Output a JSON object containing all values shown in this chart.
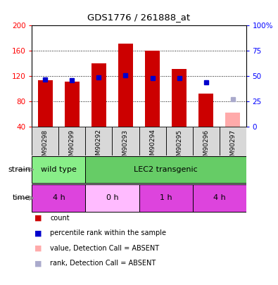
{
  "title": "GDS1776 / 261888_at",
  "samples": [
    "GSM90298",
    "GSM90299",
    "GSM90292",
    "GSM90293",
    "GSM90294",
    "GSM90295",
    "GSM90296",
    "GSM90297"
  ],
  "count_values": [
    114,
    112,
    140,
    172,
    160,
    132,
    93,
    null
  ],
  "count_absent": [
    null,
    null,
    null,
    null,
    null,
    null,
    null,
    62
  ],
  "rank_values": [
    47,
    46,
    49,
    51,
    48,
    48,
    44,
    null
  ],
  "rank_absent": [
    null,
    null,
    null,
    null,
    null,
    null,
    null,
    27
  ],
  "ylim_left": [
    40,
    200
  ],
  "ylim_right": [
    0,
    100
  ],
  "yticks_left": [
    40,
    80,
    120,
    160,
    200
  ],
  "yticks_right": [
    0,
    25,
    50,
    75,
    100
  ],
  "bar_bottom": 40,
  "strain_labels": [
    {
      "label": "wild type",
      "start": 0,
      "end": 2,
      "color": "#88ee88"
    },
    {
      "label": "LEC2 transgenic",
      "start": 2,
      "end": 8,
      "color": "#66cc66"
    }
  ],
  "time_labels": [
    {
      "label": "4 h",
      "start": 0,
      "end": 2,
      "color": "#dd44dd"
    },
    {
      "label": "0 h",
      "start": 2,
      "end": 4,
      "color": "#ffbbff"
    },
    {
      "label": "1 h",
      "start": 4,
      "end": 6,
      "color": "#dd44dd"
    },
    {
      "label": "4 h",
      "start": 6,
      "end": 8,
      "color": "#dd44dd"
    }
  ],
  "legend_items": [
    {
      "label": "count",
      "color": "#cc0000"
    },
    {
      "label": "percentile rank within the sample",
      "color": "#0000cc"
    },
    {
      "label": "value, Detection Call = ABSENT",
      "color": "#ffaaaa"
    },
    {
      "label": "rank, Detection Call = ABSENT",
      "color": "#aaaacc"
    }
  ],
  "bar_color": "#cc0000",
  "bar_absent_color": "#ffaaaa",
  "rank_color": "#0000cc",
  "rank_absent_color": "#aaaacc",
  "bg_color": "#d8d8d8",
  "plot_bg": "#ffffff"
}
